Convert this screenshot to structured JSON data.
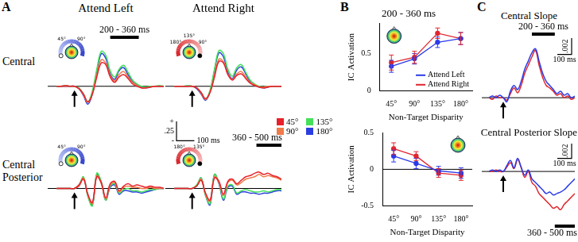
{
  "panel_letters": [
    "A",
    "B",
    "C"
  ],
  "row_labels": [
    "Central",
    "Central Posterior"
  ],
  "chart_data": [
    {
      "type": "line",
      "title": "Attend Left",
      "x": [
        -100,
        -75,
        -50,
        -25,
        0,
        25,
        50,
        75,
        100,
        125,
        150,
        175,
        200,
        225,
        250,
        275,
        300,
        325,
        350,
        375,
        400,
        425,
        450,
        475,
        500
      ],
      "xlim": [
        -150,
        500
      ],
      "ylim": [
        -0.35,
        0.6
      ],
      "tick_labels": false,
      "grid": false,
      "arc_labels": [
        "45°",
        "90°"
      ],
      "annotations": [
        {
          "type": "arrow",
          "x": 0
        },
        {
          "type": "bar",
          "x": [
            200,
            360
          ],
          "text": "200 - 360 ms",
          "position": "above"
        }
      ],
      "series": [
        {
          "name": "45°",
          "color": "#e8202a",
          "values": [
            0,
            0,
            0.01,
            0,
            0,
            -0.03,
            -0.1,
            -0.2,
            -0.1,
            0.12,
            0.3,
            0.28,
            0.12,
            0.05,
            0.12,
            0.15,
            0.1,
            0.03,
            0,
            -0.02,
            -0.02,
            -0.01,
            0,
            0,
            0
          ]
        },
        {
          "name": "90°",
          "color": "#f07a4a",
          "values": [
            0,
            0,
            0,
            0,
            0,
            -0.03,
            -0.11,
            -0.21,
            -0.1,
            0.15,
            0.34,
            0.3,
            0.14,
            0.07,
            0.15,
            0.19,
            0.12,
            0.05,
            0.01,
            -0.02,
            -0.02,
            -0.01,
            0,
            0,
            0
          ]
        },
        {
          "name": "135°",
          "color": "#44e05a",
          "values": [
            0,
            0,
            0.01,
            0,
            0,
            -0.02,
            -0.1,
            -0.2,
            -0.06,
            0.22,
            0.45,
            0.4,
            0.2,
            0.12,
            0.22,
            0.27,
            0.18,
            0.08,
            0.03,
            0,
            -0.01,
            0,
            0,
            0.01,
            0
          ]
        },
        {
          "name": "180°",
          "color": "#2a3ee0",
          "values": [
            0,
            0,
            0,
            0,
            0,
            -0.03,
            -0.12,
            -0.23,
            -0.1,
            0.18,
            0.42,
            0.36,
            0.16,
            0.09,
            0.2,
            0.24,
            0.15,
            0.06,
            0.02,
            -0.01,
            -0.02,
            -0.01,
            0,
            0,
            0
          ]
        }
      ]
    },
    {
      "type": "line",
      "title": "Attend Right",
      "x": [
        -100,
        -75,
        -50,
        -25,
        0,
        25,
        50,
        75,
        100,
        125,
        150,
        175,
        200,
        225,
        250,
        275,
        300,
        325,
        350,
        375,
        400,
        425,
        450,
        475,
        500
      ],
      "xlim": [
        -150,
        500
      ],
      "ylim": [
        -0.35,
        0.6
      ],
      "tick_labels": false,
      "grid": false,
      "arc_labels": [
        "90°",
        "135°",
        "180°"
      ],
      "legend": "bottom",
      "scale_bar": {
        "y": 0.25,
        "y_label": ".25",
        "x": 100,
        "x_label": "100 ms",
        "plus": "+",
        "minus": "-"
      },
      "annotations": [
        {
          "type": "arrow",
          "x": 0
        }
      ],
      "series": [
        {
          "name": "45°",
          "color": "#e8202a",
          "values": [
            0,
            0,
            0,
            0,
            0,
            -0.02,
            -0.08,
            -0.16,
            -0.08,
            0.12,
            0.32,
            0.3,
            0.15,
            0.08,
            0.14,
            0.16,
            0.1,
            0.04,
            0.01,
            -0.01,
            -0.02,
            -0.01,
            0,
            0,
            0
          ]
        },
        {
          "name": "90°",
          "color": "#f07a4a",
          "values": [
            0,
            0,
            0,
            0,
            0,
            -0.02,
            -0.09,
            -0.17,
            -0.08,
            0.14,
            0.35,
            0.32,
            0.16,
            0.09,
            0.16,
            0.19,
            0.12,
            0.05,
            0.02,
            -0.01,
            -0.01,
            0,
            0,
            0,
            0
          ]
        },
        {
          "name": "135°",
          "color": "#44e05a",
          "values": [
            0,
            0,
            0,
            0.01,
            0,
            -0.02,
            -0.08,
            -0.16,
            -0.05,
            0.22,
            0.46,
            0.42,
            0.22,
            0.13,
            0.24,
            0.28,
            0.18,
            0.08,
            0.03,
            0,
            -0.01,
            0,
            0,
            0,
            0
          ]
        },
        {
          "name": "180°",
          "color": "#2a3ee0",
          "values": [
            0,
            0,
            0,
            0,
            0,
            -0.03,
            -0.1,
            -0.18,
            -0.07,
            0.2,
            0.43,
            0.38,
            0.18,
            0.1,
            0.21,
            0.25,
            0.16,
            0.06,
            0.02,
            -0.01,
            -0.02,
            -0.01,
            0,
            0,
            0
          ]
        }
      ]
    },
    {
      "type": "line",
      "x": [
        -100,
        -75,
        -50,
        -25,
        0,
        25,
        50,
        75,
        100,
        125,
        150,
        175,
        200,
        225,
        250,
        275,
        300,
        325,
        350,
        375,
        400,
        425,
        450,
        475,
        500
      ],
      "xlim": [
        -150,
        500
      ],
      "ylim": [
        -0.35,
        0.35
      ],
      "tick_labels": false,
      "grid": false,
      "arc_labels": [
        "45°",
        "90°"
      ],
      "annotations": [
        {
          "type": "arrow",
          "x": 0
        }
      ],
      "series": [
        {
          "name": "45°",
          "color": "#e8202a",
          "values": [
            0,
            0,
            0,
            0,
            0,
            0.03,
            0.08,
            -0.05,
            -0.12,
            0.1,
            0.05,
            -0.08,
            0.04,
            0.06,
            -0.02,
            0.02,
            0.04,
            0.02,
            0.03,
            0.02,
            0.01,
            0.02,
            0.01,
            0.01,
            0
          ]
        },
        {
          "name": "90°",
          "color": "#f07a4a",
          "values": [
            0,
            0,
            0,
            0,
            0,
            0.02,
            0.09,
            -0.06,
            -0.13,
            0.11,
            0.04,
            -0.09,
            0.03,
            0.05,
            -0.03,
            0.01,
            0.02,
            0.01,
            0.01,
            0,
            0,
            0.01,
            0,
            0,
            0
          ]
        },
        {
          "name": "135°",
          "color": "#44e05a",
          "values": [
            0,
            0,
            0,
            0,
            0,
            0.03,
            0.1,
            -0.07,
            -0.15,
            0.13,
            0.06,
            -0.1,
            0.02,
            0.04,
            -0.04,
            -0.01,
            0,
            -0.02,
            -0.02,
            -0.03,
            -0.02,
            -0.01,
            -0.01,
            0,
            0
          ]
        },
        {
          "name": "180°",
          "color": "#2a3ee0",
          "values": [
            0,
            0,
            0,
            0,
            0,
            0.02,
            0.09,
            -0.06,
            -0.14,
            0.12,
            0.05,
            -0.1,
            0.01,
            0.03,
            -0.05,
            -0.02,
            -0.02,
            -0.03,
            -0.03,
            -0.04,
            -0.03,
            -0.02,
            -0.01,
            0,
            0
          ]
        }
      ]
    },
    {
      "type": "line",
      "x": [
        -100,
        -75,
        -50,
        -25,
        0,
        25,
        50,
        75,
        100,
        125,
        150,
        175,
        200,
        225,
        250,
        275,
        300,
        325,
        350,
        375,
        400,
        425,
        450,
        475,
        500
      ],
      "xlim": [
        -150,
        500
      ],
      "ylim": [
        -0.35,
        0.35
      ],
      "tick_labels": false,
      "grid": false,
      "arc_labels": [
        "135°",
        "180°"
      ],
      "annotations": [
        {
          "type": "arrow",
          "x": 0
        },
        {
          "type": "bar",
          "x": [
            360,
            500
          ],
          "text": "360 - 500 ms",
          "position": "above"
        }
      ],
      "series": [
        {
          "name": "45°",
          "color": "#e8202a",
          "values": [
            0,
            0,
            0,
            0,
            0,
            0.02,
            0.07,
            -0.04,
            -0.1,
            0.09,
            0.06,
            -0.05,
            0.06,
            0.08,
            0.04,
            0.07,
            0.1,
            0.11,
            0.13,
            0.14,
            0.12,
            0.13,
            0.11,
            0.1,
            0.08
          ]
        },
        {
          "name": "90°",
          "color": "#f07a4a",
          "values": [
            0,
            0,
            0,
            0,
            0,
            0.02,
            0.08,
            -0.05,
            -0.11,
            0.1,
            0.05,
            -0.06,
            0.05,
            0.07,
            0.03,
            0.05,
            0.08,
            0.09,
            0.1,
            0.12,
            0.1,
            0.11,
            0.1,
            0.09,
            0.07
          ]
        },
        {
          "name": "135°",
          "color": "#44e05a",
          "values": [
            0,
            0,
            0,
            0,
            0,
            0.03,
            0.09,
            -0.06,
            -0.13,
            0.12,
            0.05,
            -0.09,
            0.02,
            0.03,
            -0.04,
            -0.02,
            -0.01,
            -0.02,
            -0.03,
            -0.03,
            -0.02,
            -0.03,
            -0.02,
            -0.01,
            -0.01
          ]
        },
        {
          "name": "180°",
          "color": "#2a3ee0",
          "values": [
            0,
            0,
            0,
            0,
            0,
            0.02,
            0.09,
            -0.06,
            -0.14,
            0.12,
            0.04,
            -0.1,
            0.01,
            0.02,
            -0.05,
            -0.03,
            -0.03,
            -0.04,
            -0.04,
            -0.05,
            -0.04,
            -0.04,
            -0.03,
            -0.02,
            -0.02
          ]
        }
      ]
    },
    {
      "type": "line",
      "title": "200 - 360 ms",
      "x_label": "Non-Target Disparity",
      "y_label": "IC Activation",
      "categories": [
        "45°",
        "90°",
        "135°",
        "180°"
      ],
      "ylim": [
        0,
        0.9
      ],
      "yticks": [
        0,
        0.5
      ],
      "grid": false,
      "legend": "lower right",
      "series": [
        {
          "name": "Attend Left",
          "color": "#2b3be8",
          "values": [
            0.33,
            0.43,
            0.65,
            0.7
          ],
          "errors": [
            0.08,
            0.07,
            0.07,
            0.08
          ]
        },
        {
          "name": "Attend Right",
          "color": "#e0262e",
          "values": [
            0.38,
            0.45,
            0.77,
            0.7
          ],
          "errors": [
            0.1,
            0.08,
            0.07,
            0.08
          ]
        }
      ]
    },
    {
      "type": "line",
      "x_label": "Non-Target Disparity",
      "y_label": "IC Activation",
      "categories": [
        "45°",
        "90°",
        "135°",
        "180°"
      ],
      "ylim": [
        -0.5,
        0.5
      ],
      "yticks": [
        -0.5,
        0,
        0.5
      ],
      "grid": false,
      "annotations": [
        {
          "type": "hline",
          "y": 0
        }
      ],
      "series": [
        {
          "name": "Attend Left",
          "color": "#2b3be8",
          "values": [
            0.18,
            0.08,
            -0.02,
            -0.05
          ],
          "errors": [
            0.08,
            0.07,
            0.06,
            0.07
          ]
        },
        {
          "name": "Attend Right",
          "color": "#e0262e",
          "values": [
            0.28,
            0.18,
            -0.05,
            -0.08
          ],
          "errors": [
            0.08,
            0.06,
            0.06,
            0.07
          ]
        }
      ]
    },
    {
      "type": "line",
      "title": "Central Slope",
      "x": [
        -100,
        -75,
        -50,
        -25,
        0,
        25,
        50,
        75,
        100,
        125,
        150,
        175,
        200,
        225,
        250,
        275,
        300,
        325,
        350,
        375,
        400,
        425,
        450,
        475,
        500
      ],
      "xlim": [
        -150,
        500
      ],
      "ylim": [
        -0.003,
        0.0075
      ],
      "tick_labels": false,
      "grid": false,
      "scale_bar": {
        "y": 0.002,
        "y_label": ".002",
        "x": 100,
        "x_label": "100 ms"
      },
      "annotations": [
        {
          "type": "arrow",
          "x": 0
        },
        {
          "type": "bar",
          "x": [
            200,
            360
          ],
          "text": "200 - 360 ms",
          "position": "above"
        }
      ],
      "series": [
        {
          "color": "#2b3be8",
          "values": [
            0,
            0.0002,
            0,
            0.0003,
            0,
            -0.0005,
            0.0008,
            0.0015,
            0.001,
            0.002,
            0.0035,
            0.0045,
            0.0055,
            0.006,
            0.0045,
            0.003,
            0.002,
            0.0015,
            0.001,
            0.0005,
            0.0008,
            0.0003,
            0.0005,
            0,
            0.0002
          ]
        },
        {
          "color": "#e0262e",
          "values": [
            0,
            -0.0002,
            0.0002,
            0,
            0,
            -0.0003,
            0.0005,
            0.0012,
            0.0006,
            0.0015,
            0.003,
            0.004,
            0.005,
            0.0058,
            0.004,
            0.0025,
            0.0015,
            0.0012,
            0.0008,
            0.0003,
            0.0005,
            0,
            0.0002,
            -0.0002,
            0
          ]
        }
      ]
    },
    {
      "type": "line",
      "title": "Central Posterior Slope",
      "x": [
        -100,
        -75,
        -50,
        -25,
        0,
        25,
        50,
        75,
        100,
        125,
        150,
        175,
        200,
        225,
        250,
        275,
        300,
        325,
        350,
        375,
        400,
        425,
        450,
        475,
        500
      ],
      "xlim": [
        -150,
        500
      ],
      "ylim": [
        -0.007,
        0.004
      ],
      "tick_labels": false,
      "grid": false,
      "scale_bar": {
        "y": 0.002,
        "y_label": ".002",
        "x": 100,
        "x_label": "100 ms"
      },
      "annotations": [
        {
          "type": "arrow",
          "x": 0
        },
        {
          "type": "bar",
          "x": [
            360,
            500
          ],
          "text": "360 - 500 ms",
          "position": "below"
        }
      ],
      "series": [
        {
          "color": "#2b3be8",
          "values": [
            0,
            0.0002,
            0,
            0.0002,
            0,
            0.0008,
            0.0015,
            0.0005,
            0.0018,
            0.0006,
            -0.0005,
            0.0002,
            -0.001,
            -0.0015,
            -0.002,
            -0.0025,
            -0.003,
            -0.0028,
            -0.0032,
            -0.003,
            -0.0028,
            -0.0025,
            -0.002,
            -0.0015,
            -0.001
          ]
        },
        {
          "color": "#e0262e",
          "values": [
            0,
            0,
            0.0002,
            0,
            0,
            0.0006,
            0.0012,
            0.0004,
            0.0016,
            0.0005,
            -0.0008,
            0,
            -0.0015,
            -0.002,
            -0.003,
            -0.0035,
            -0.004,
            -0.0045,
            -0.005,
            -0.0048,
            -0.0052,
            -0.0045,
            -0.004,
            -0.0035,
            -0.003
          ]
        }
      ]
    }
  ]
}
